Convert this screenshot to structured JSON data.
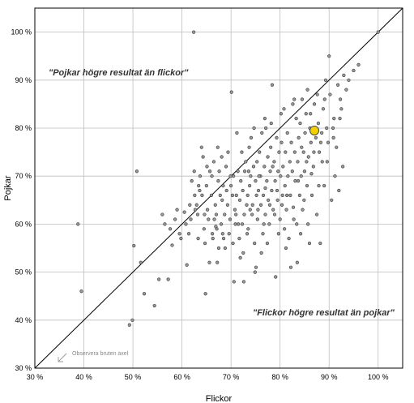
{
  "chart_data": {
    "type": "scatter",
    "xlabel": "Flickor",
    "ylabel": "Pojkar",
    "xlim": [
      30,
      105
    ],
    "ylim": [
      30,
      105
    ],
    "x_ticks": [
      30,
      40,
      50,
      60,
      70,
      80,
      90,
      100
    ],
    "y_ticks": [
      30,
      40,
      50,
      60,
      70,
      80,
      90,
      100
    ],
    "x_tick_labels": [
      "30 %",
      "40 %",
      "50 %",
      "60 %",
      "70 %",
      "80 %",
      "90 %",
      "100 %"
    ],
    "y_tick_labels": [
      "30 %",
      "40 %",
      "50 %",
      "60 %",
      "70 %",
      "80 %",
      "90 %",
      "100 %"
    ],
    "grid": true,
    "reference_line": "y = x",
    "annotations": {
      "upper": "\"Pojkar högre resultat än flickor\"",
      "lower": "\"Flickor högre resultat än pojkar\"",
      "axis_note": "Observera bruten axel"
    },
    "highlight_point": {
      "x": 87,
      "y": 79.5,
      "color": "#f5d000"
    },
    "points": [
      [
        38.8,
        60
      ],
      [
        39.5,
        46
      ],
      [
        49.3,
        39
      ],
      [
        49.9,
        40
      ],
      [
        50.2,
        55.5
      ],
      [
        50.8,
        71
      ],
      [
        51.6,
        52
      ],
      [
        52.3,
        45.5
      ],
      [
        54.4,
        43
      ],
      [
        55.3,
        48.5
      ],
      [
        56,
        62
      ],
      [
        56.5,
        60
      ],
      [
        57.2,
        48.5
      ],
      [
        58,
        55.6
      ],
      [
        59,
        63
      ],
      [
        59.8,
        57
      ],
      [
        60.5,
        62.5
      ],
      [
        61,
        51.5
      ],
      [
        61.4,
        58
      ],
      [
        61.8,
        61
      ],
      [
        62,
        69
      ],
      [
        62.4,
        100
      ],
      [
        62.5,
        71
      ],
      [
        62.6,
        66
      ],
      [
        63,
        64
      ],
      [
        63.2,
        62
      ],
      [
        63.3,
        57
      ],
      [
        63.6,
        67
      ],
      [
        63.7,
        70
      ],
      [
        64,
        76
      ],
      [
        64.3,
        74
      ],
      [
        64.5,
        59
      ],
      [
        64.7,
        56
      ],
      [
        64.8,
        45.5
      ],
      [
        65,
        68
      ],
      [
        65.2,
        63
      ],
      [
        65.4,
        61
      ],
      [
        65.7,
        71
      ],
      [
        66,
        66
      ],
      [
        66.2,
        58
      ],
      [
        66.3,
        57
      ],
      [
        66.5,
        73
      ],
      [
        66.8,
        64
      ],
      [
        67,
        62
      ],
      [
        67.1,
        59
      ],
      [
        67.2,
        52
      ],
      [
        67.4,
        69
      ],
      [
        67.5,
        55
      ],
      [
        67.6,
        71
      ],
      [
        67.8,
        66
      ],
      [
        68,
        60
      ],
      [
        68.2,
        65
      ],
      [
        68.4,
        68
      ],
      [
        68.5,
        57
      ],
      [
        68.7,
        62
      ],
      [
        69,
        72
      ],
      [
        69.1,
        67
      ],
      [
        69.3,
        64
      ],
      [
        69.4,
        75
      ],
      [
        69.6,
        58
      ],
      [
        69.8,
        61
      ],
      [
        70,
        68
      ],
      [
        70.1,
        87.5
      ],
      [
        70.3,
        66
      ],
      [
        70.5,
        70
      ],
      [
        70.6,
        48
      ],
      [
        70.8,
        63
      ],
      [
        71,
        62
      ],
      [
        71.2,
        79
      ],
      [
        71.4,
        71
      ],
      [
        71.5,
        60
      ],
      [
        71.7,
        57
      ],
      [
        71.8,
        65
      ],
      [
        72,
        69
      ],
      [
        72.2,
        75
      ],
      [
        72.4,
        67
      ],
      [
        72.5,
        54
      ],
      [
        72.7,
        62
      ],
      [
        72.8,
        71
      ],
      [
        73,
        73
      ],
      [
        73.2,
        64
      ],
      [
        73.4,
        66
      ],
      [
        73.5,
        59
      ],
      [
        73.7,
        76
      ],
      [
        73.8,
        68
      ],
      [
        74,
        70
      ],
      [
        74.1,
        78
      ],
      [
        74.3,
        62
      ],
      [
        74.4,
        64
      ],
      [
        74.6,
        72
      ],
      [
        74.8,
        56
      ],
      [
        75,
        69
      ],
      [
        75.1,
        51
      ],
      [
        75.3,
        73
      ],
      [
        75.4,
        61
      ],
      [
        75.6,
        67
      ],
      [
        75.8,
        75
      ],
      [
        76,
        70
      ],
      [
        76.1,
        64
      ],
      [
        76.3,
        79
      ],
      [
        76.5,
        58
      ],
      [
        76.6,
        66
      ],
      [
        76.8,
        72
      ],
      [
        77,
        62
      ],
      [
        77.1,
        80
      ],
      [
        77.3,
        69
      ],
      [
        77.5,
        74
      ],
      [
        77.6,
        65
      ],
      [
        77.8,
        60
      ],
      [
        78,
        71
      ],
      [
        78.1,
        76
      ],
      [
        78.3,
        67
      ],
      [
        78.4,
        89
      ],
      [
        78.6,
        63
      ],
      [
        78.8,
        73
      ],
      [
        79,
        69
      ],
      [
        79.1,
        49
      ],
      [
        79.3,
        78
      ],
      [
        79.5,
        65
      ],
      [
        79.6,
        71
      ],
      [
        79.8,
        75
      ],
      [
        80,
        61
      ],
      [
        80.1,
        70
      ],
      [
        80.3,
        77
      ],
      [
        80.5,
        66
      ],
      [
        80.6,
        72
      ],
      [
        80.8,
        84
      ],
      [
        81,
        68
      ],
      [
        81.1,
        75
      ],
      [
        81.3,
        63
      ],
      [
        81.5,
        79
      ],
      [
        81.6,
        70
      ],
      [
        81.8,
        57
      ],
      [
        82,
        73
      ],
      [
        82.1,
        66
      ],
      [
        82.3,
        77
      ],
      [
        82.5,
        71
      ],
      [
        82.6,
        85
      ],
      [
        82.8,
        61
      ],
      [
        83,
        75
      ],
      [
        83.1,
        69
      ],
      [
        83.3,
        82
      ],
      [
        83.5,
        52
      ],
      [
        83.6,
        73
      ],
      [
        83.8,
        78
      ],
      [
        84,
        66
      ],
      [
        84.1,
        81
      ],
      [
        84.3,
        70
      ],
      [
        84.5,
        86
      ],
      [
        84.6,
        63
      ],
      [
        84.8,
        75
      ],
      [
        85,
        71
      ],
      [
        85.1,
        79
      ],
      [
        85.3,
        83
      ],
      [
        85.5,
        68
      ],
      [
        85.6,
        88
      ],
      [
        85.8,
        74
      ],
      [
        86,
        56
      ],
      [
        86.1,
        80
      ],
      [
        86.3,
        77
      ],
      [
        86.5,
        66
      ],
      [
        86.8,
        72
      ],
      [
        87,
        85
      ],
      [
        87.3,
        78
      ],
      [
        87.5,
        62
      ],
      [
        87.8,
        81
      ],
      [
        88,
        75
      ],
      [
        88.2,
        56
      ],
      [
        88.5,
        79
      ],
      [
        88.8,
        84
      ],
      [
        89,
        68
      ],
      [
        89.3,
        90
      ],
      [
        89.5,
        80
      ],
      [
        89.8,
        77
      ],
      [
        90,
        95
      ],
      [
        90.2,
        87
      ],
      [
        90.5,
        65
      ],
      [
        90.8,
        80
      ],
      [
        91,
        82
      ],
      [
        91.2,
        70
      ],
      [
        91.5,
        76
      ],
      [
        91.8,
        89
      ],
      [
        92,
        67
      ],
      [
        92.3,
        86
      ],
      [
        92.5,
        84
      ],
      [
        92.8,
        72
      ],
      [
        93,
        91
      ],
      [
        93.5,
        88
      ],
      [
        94,
        90
      ],
      [
        95,
        92
      ],
      [
        96,
        93.2
      ],
      [
        100,
        100
      ],
      [
        78.5,
        72
      ],
      [
        77,
        67.5
      ],
      [
        75.5,
        63
      ],
      [
        73.3,
        58
      ],
      [
        79.7,
        58
      ],
      [
        81.2,
        55
      ],
      [
        83.4,
        60
      ],
      [
        76.2,
        54
      ],
      [
        74.9,
        50
      ],
      [
        71.9,
        53
      ],
      [
        68.8,
        55
      ],
      [
        66.9,
        59.5
      ],
      [
        65.6,
        52
      ],
      [
        70.4,
        56
      ],
      [
        72.6,
        48
      ],
      [
        80.9,
        59
      ],
      [
        82.7,
        63.5
      ],
      [
        84.9,
        65
      ],
      [
        86.4,
        70.5
      ],
      [
        88.6,
        73
      ],
      [
        87.9,
        68
      ],
      [
        85.7,
        60
      ],
      [
        84.2,
        58
      ],
      [
        82.2,
        51
      ],
      [
        80.4,
        64
      ],
      [
        78.9,
        62
      ],
      [
        77.4,
        56
      ],
      [
        76.7,
        60
      ],
      [
        75.2,
        66
      ],
      [
        73.9,
        63
      ],
      [
        72.3,
        60
      ],
      [
        71.1,
        66
      ],
      [
        69.9,
        70
      ],
      [
        68.1,
        74
      ],
      [
        67.3,
        76
      ],
      [
        66.1,
        70
      ],
      [
        65.1,
        72
      ],
      [
        64.1,
        66
      ],
      [
        63.4,
        68
      ],
      [
        62.7,
        63
      ],
      [
        61.6,
        64
      ],
      [
        60.8,
        60
      ],
      [
        59.5,
        58
      ],
      [
        58.6,
        61
      ],
      [
        57.6,
        59
      ],
      [
        64.6,
        62
      ],
      [
        66.6,
        61
      ],
      [
        68.3,
        58
      ],
      [
        70.9,
        60
      ],
      [
        73.6,
        71
      ],
      [
        75.7,
        70
      ],
      [
        77.9,
        64
      ],
      [
        79.4,
        67
      ],
      [
        81.4,
        66
      ],
      [
        83.7,
        69
      ],
      [
        85.4,
        73
      ],
      [
        86.9,
        75
      ],
      [
        88.3,
        77
      ],
      [
        89.6,
        73
      ],
      [
        90.9,
        78
      ],
      [
        92.2,
        82
      ],
      [
        74.7,
        80
      ],
      [
        76.9,
        82
      ],
      [
        78.2,
        81
      ],
      [
        80.2,
        83
      ],
      [
        82.9,
        86
      ],
      [
        84.4,
        76
      ],
      [
        86.2,
        83
      ],
      [
        87.6,
        87
      ],
      [
        89.1,
        86
      ]
    ]
  }
}
